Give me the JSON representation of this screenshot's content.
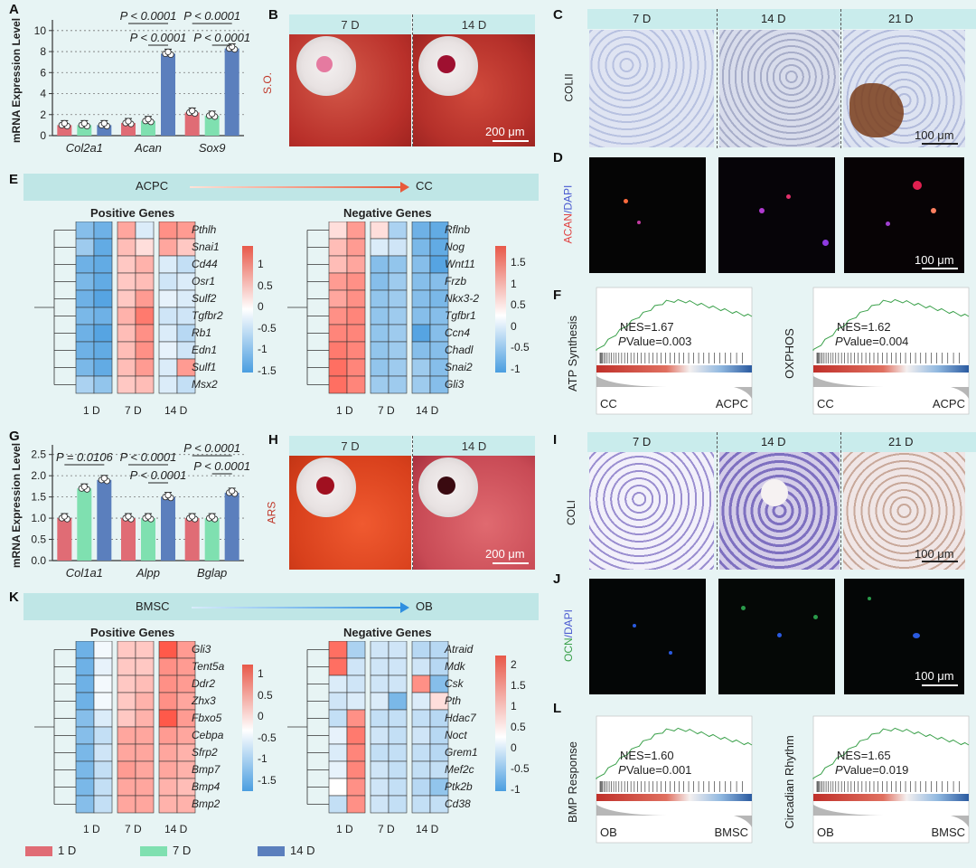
{
  "panels": {
    "A": "A",
    "B": "B",
    "C": "C",
    "D": "D",
    "E": "E",
    "F": "F",
    "G": "G",
    "H": "H",
    "I": "I",
    "J": "J",
    "K": "K",
    "L": "L"
  },
  "chartA": {
    "ylabel": "mRNA Expression Level",
    "yticks": [
      "0",
      "2",
      "4",
      "6",
      "8",
      "10"
    ],
    "genes": [
      "Col2a1",
      "Acan",
      "Sox9"
    ],
    "pvals": [
      "P < 0.0001",
      "P < 0.0001",
      "P < 0.0001",
      "P < 0.0001"
    ]
  },
  "chartG": {
    "ylabel": "mRNA Expression Level",
    "yticks": [
      "0.0",
      "0.5",
      "1.0",
      "1.5",
      "2.0",
      "2.5"
    ],
    "genes": [
      "Col1a1",
      "Alpp",
      "Bglap"
    ],
    "pvals": [
      "P = 0.0106",
      "P < 0.0001",
      "P < 0.0001",
      "P < 0.0001",
      "P < 0.0001"
    ]
  },
  "chart_data": [
    {
      "type": "bar",
      "title": "",
      "xlabel": "",
      "ylabel": "mRNA Expression Level",
      "ylim": [
        0,
        10.5
      ],
      "categories": [
        "Col2a1",
        "Acan",
        "Sox9"
      ],
      "series": [
        {
          "name": "1 D",
          "values": [
            1.0,
            1.2,
            2.2
          ]
        },
        {
          "name": "7 D",
          "values": [
            1.0,
            1.4,
            1.9
          ]
        },
        {
          "name": "14 D",
          "values": [
            1.0,
            7.8,
            8.3
          ]
        }
      ]
    },
    {
      "type": "bar",
      "title": "",
      "xlabel": "",
      "ylabel": "mRNA Expression Level",
      "ylim": [
        0,
        2.6
      ],
      "categories": [
        "Col1a1",
        "Alpp",
        "Bglap"
      ],
      "series": [
        {
          "name": "1 D",
          "values": [
            1.0,
            1.0,
            1.0
          ]
        },
        {
          "name": "7 D",
          "values": [
            1.7,
            1.0,
            1.0
          ]
        },
        {
          "name": "14 D",
          "values": [
            1.9,
            1.5,
            1.6
          ]
        }
      ]
    }
  ],
  "B": {
    "days": [
      "7 D",
      "14 D"
    ],
    "label": "S.O.",
    "scale": "200 μm"
  },
  "C": {
    "days": [
      "7 D",
      "14 D",
      "21 D"
    ],
    "label": "COLII",
    "scale": "100 μm"
  },
  "D": {
    "label1": "ACAN",
    "label2": "/DAPI",
    "scale": "100 μm"
  },
  "E": {
    "from": "ACPC",
    "to": "CC",
    "pos_title": "Positive Genes",
    "neg_title": "Negative Genes",
    "pos_genes": [
      "Pthlh",
      "Snai1",
      "Cd44",
      "Osr1",
      "Sulf2",
      "Tgfbr2",
      "Rb1",
      "Edn1",
      "Sulf1",
      "Msx2"
    ],
    "neg_genes": [
      "Rflnb",
      "Nog",
      "Wnt11",
      "Frzb",
      "Nkx3-2",
      "Tgfbr1",
      "Ccn4",
      "Chadl",
      "Snai2",
      "Gli3"
    ],
    "cols": [
      "1 D",
      "7 D",
      "14 D"
    ],
    "scale1": [
      "1",
      "0.5",
      "0",
      "-0.5",
      "-1",
      "-1.5"
    ],
    "scale2": [
      "1.5",
      "1",
      "0.5",
      "0",
      "-0.5",
      "-1"
    ]
  },
  "F": {
    "plots": [
      {
        "ylabel": "ATP Synthesis",
        "nes": "NES=1.67",
        "p": "P",
        "pval": " Value=0.003",
        "left": "CC",
        "right": "ACPC"
      },
      {
        "ylabel": "OXPHOS",
        "nes": "NES=1.62",
        "p": "P",
        "pval": " Value=0.004",
        "left": "CC",
        "right": "ACPC"
      }
    ]
  },
  "H": {
    "days": [
      "7 D",
      "14 D"
    ],
    "label": "ARS",
    "scale": "200 μm"
  },
  "I": {
    "days": [
      "7 D",
      "14 D",
      "21 D"
    ],
    "label": "COLI",
    "scale": "100 μm"
  },
  "J": {
    "label1": "OCN",
    "label2": "/DAPI",
    "scale": "100 μm"
  },
  "K": {
    "from": "BMSC",
    "to": "OB",
    "pos_title": "Positive Genes",
    "neg_title": "Negative Genes",
    "pos_genes": [
      "Gli3",
      "Tent5a",
      "Ddr2",
      "Zhx3",
      "Fbxo5",
      "Cebpa",
      "Sfrp2",
      "Bmp7",
      "Bmp4",
      "Bmp2"
    ],
    "neg_genes": [
      "Atraid",
      "Mdk",
      "Csk",
      "Pth",
      "Hdac7",
      "Noct",
      "Grem1",
      "Mef2c",
      "Ptk2b",
      "Cd38"
    ],
    "cols": [
      "1 D",
      "7 D",
      "14 D"
    ],
    "scale1": [
      "1",
      "0.5",
      "0",
      "-0.5",
      "-1",
      "-1.5"
    ],
    "scale2": [
      "2",
      "1.5",
      "1",
      "0.5",
      "0",
      "-0.5",
      "-1"
    ]
  },
  "L": {
    "plots": [
      {
        "ylabel": "BMP Response",
        "nes": "NES=1.60",
        "p": "P",
        "pval": " Value=0.001",
        "left": "OB",
        "right": "BMSC"
      },
      {
        "ylabel": "Circadian Rhythm",
        "nes": "NES=1.65",
        "p": "P",
        "pval": " Value=0.019",
        "left": "OB",
        "right": "BMSC"
      }
    ]
  },
  "legend": [
    {
      "label": "1 D",
      "color": "#e06c75"
    },
    {
      "label": "7 D",
      "color": "#7fe0b0"
    },
    {
      "label": "14 D",
      "color": "#5b7fbd"
    }
  ],
  "colors": {
    "d1": "#e06c75",
    "d7": "#7fe0b0",
    "d14": "#5b7fbd"
  }
}
